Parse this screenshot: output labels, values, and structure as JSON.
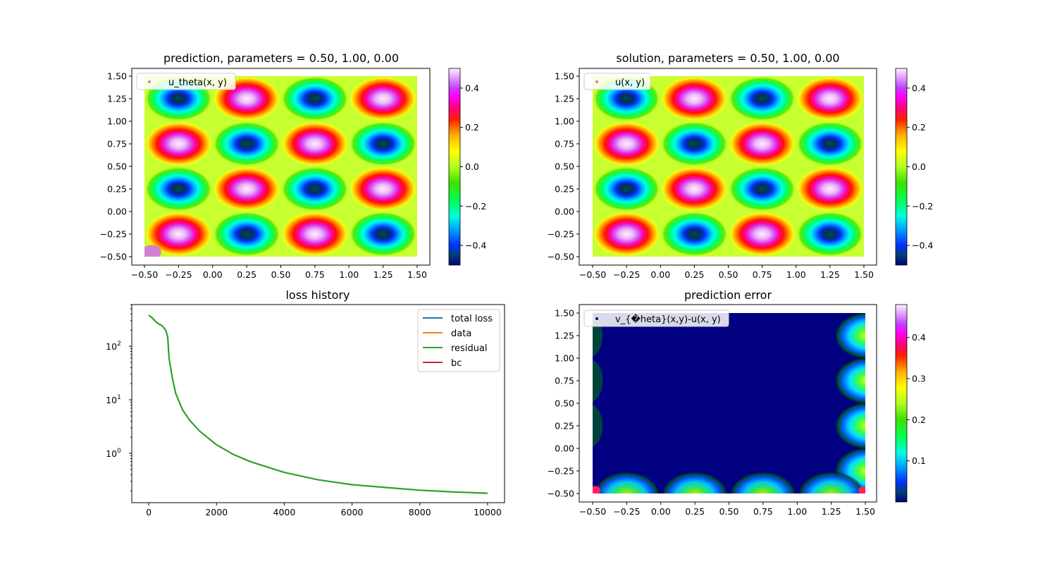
{
  "chart_data": [
    {
      "type": "heatmap",
      "title": "prediction, parameters = 0.50, 1.00, 0.00",
      "xlim": [
        -0.5,
        1.5
      ],
      "ylim": [
        -0.5,
        1.5
      ],
      "xticks": [
        "−0.50",
        "−0.25",
        "0.00",
        "0.25",
        "0.50",
        "0.75",
        "1.00",
        "1.25",
        "1.50"
      ],
      "yticks": [
        "−0.50",
        "−0.25",
        "0.00",
        "0.25",
        "0.50",
        "0.75",
        "1.00",
        "1.25",
        "1.50"
      ],
      "legend": {
        "label": "u_theta(x, y)",
        "position": "top-left"
      },
      "colorbar": {
        "range": [
          -0.5,
          0.5
        ],
        "ticks": [
          "−0.4",
          "−0.2",
          "0.0",
          "0.2",
          "0.4"
        ]
      },
      "field": "0.5*sin(2πx)*sin(2πy)",
      "colormap": "gist_ncar"
    },
    {
      "type": "heatmap",
      "title": "solution, parameters = 0.50, 1.00, 0.00",
      "xlim": [
        -0.5,
        1.5
      ],
      "ylim": [
        -0.5,
        1.5
      ],
      "xticks": [
        "−0.50",
        "−0.25",
        "0.00",
        "0.25",
        "0.50",
        "0.75",
        "1.00",
        "1.25",
        "1.50"
      ],
      "yticks": [
        "−0.50",
        "−0.25",
        "0.00",
        "0.25",
        "0.50",
        "0.75",
        "1.00",
        "1.25",
        "1.50"
      ],
      "legend": {
        "label": "u(x, y)",
        "position": "top-left"
      },
      "colorbar": {
        "range": [
          -0.5,
          0.5
        ],
        "ticks": [
          "−0.4",
          "−0.2",
          "0.0",
          "0.2",
          "0.4"
        ]
      },
      "field": "0.5*sin(2πx)*sin(2πy)",
      "colormap": "gist_ncar"
    },
    {
      "type": "line",
      "title": "loss history",
      "yscale": "log",
      "xlim": [
        -500,
        10500
      ],
      "ylim": [
        0.12,
        600
      ],
      "xticks": [
        "0",
        "2000",
        "4000",
        "6000",
        "8000",
        "10000"
      ],
      "legend_position": "top-right",
      "series": [
        {
          "name": "total loss",
          "color": "#1f77b4"
        },
        {
          "name": "data",
          "color": "#ff7f0e"
        },
        {
          "name": "residual",
          "color": "#2ca02c",
          "x": [
            0,
            100,
            200,
            300,
            400,
            500,
            560,
            600,
            700,
            800,
            1000,
            1200,
            1500,
            2000,
            2500,
            3000,
            4000,
            5000,
            6000,
            7000,
            8000,
            9000,
            10000
          ],
          "y": [
            380,
            340,
            290,
            260,
            240,
            200,
            150,
            60,
            25,
            13,
            6.5,
            4.2,
            2.6,
            1.45,
            0.95,
            0.7,
            0.44,
            0.32,
            0.26,
            0.23,
            0.205,
            0.19,
            0.18
          ]
        },
        {
          "name": "bc",
          "color": "#d62728"
        }
      ]
    },
    {
      "type": "heatmap",
      "title": "prediction error",
      "xlim": [
        -0.5,
        1.5
      ],
      "ylim": [
        -0.5,
        1.5
      ],
      "xticks": [
        "−0.50",
        "−0.25",
        "0.00",
        "0.25",
        "0.50",
        "0.75",
        "1.00",
        "1.25",
        "1.50"
      ],
      "yticks": [
        "−0.50",
        "−0.25",
        "0.00",
        "0.25",
        "0.50",
        "0.75",
        "1.00",
        "1.25",
        "1.50"
      ],
      "legend": {
        "label": "v_{�heta}(x,y)-u(x, y)",
        "position": "top-left"
      },
      "colorbar": {
        "range": [
          0.0,
          0.48
        ],
        "ticks": [
          "0.1",
          "0.2",
          "0.3",
          "0.4"
        ]
      },
      "colormap": "gist_ncar"
    }
  ]
}
